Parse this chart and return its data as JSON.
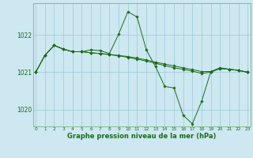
{
  "bg_color": "#cde8f0",
  "line_color": "#1a6b1a",
  "grid_color": "#9dc8d8",
  "xlabel": "Graphe pression niveau de la mer (hPa)",
  "xlabel_fontsize": 6.0,
  "ytick_labels": [
    "1020",
    "1021",
    "1022"
  ],
  "ytick_vals": [
    1020,
    1021,
    1022
  ],
  "ylim": [
    1019.55,
    1022.85
  ],
  "xlim": [
    -0.3,
    23.3
  ],
  "line1_x": [
    0,
    1,
    2,
    3,
    4,
    5,
    6,
    7,
    8,
    9,
    10,
    11,
    12,
    13,
    14,
    15,
    16,
    17,
    18,
    19,
    20,
    21,
    22,
    23
  ],
  "line1_y": [
    1021.0,
    1021.45,
    1021.72,
    1021.62,
    1021.55,
    1021.55,
    1021.6,
    1021.58,
    1021.5,
    1022.02,
    1022.62,
    1022.48,
    1021.6,
    1021.15,
    1020.62,
    1020.58,
    1019.85,
    1019.62,
    1020.22,
    1021.02,
    1021.12,
    1021.08,
    1021.05,
    1021.0
  ],
  "line2_x": [
    0,
    1,
    2,
    3,
    4,
    5,
    6,
    7,
    8,
    9,
    10,
    11,
    12,
    13,
    14,
    15,
    16,
    17,
    18,
    19,
    20,
    21,
    22,
    23
  ],
  "line2_y": [
    1021.0,
    1021.45,
    1021.72,
    1021.62,
    1021.55,
    1021.55,
    1021.52,
    1021.5,
    1021.48,
    1021.45,
    1021.42,
    1021.38,
    1021.33,
    1021.27,
    1021.22,
    1021.17,
    1021.12,
    1021.07,
    1021.02,
    1021.02,
    1021.1,
    1021.08,
    1021.05,
    1021.0
  ],
  "line3_x": [
    0,
    1,
    2,
    3,
    4,
    5,
    6,
    7,
    8,
    9,
    10,
    11,
    12,
    13,
    14,
    15,
    16,
    17,
    18,
    19,
    20,
    21,
    22,
    23
  ],
  "line3_y": [
    1021.0,
    1021.45,
    1021.72,
    1021.62,
    1021.55,
    1021.55,
    1021.52,
    1021.5,
    1021.47,
    1021.44,
    1021.4,
    1021.35,
    1021.3,
    1021.24,
    1021.18,
    1021.12,
    1021.08,
    1021.03,
    1020.97,
    1021.0,
    1021.1,
    1021.08,
    1021.05,
    1021.0
  ],
  "xtick_fontsize": 4.2,
  "ytick_fontsize": 5.5,
  "linewidth": 0.7,
  "markersize": 1.8
}
